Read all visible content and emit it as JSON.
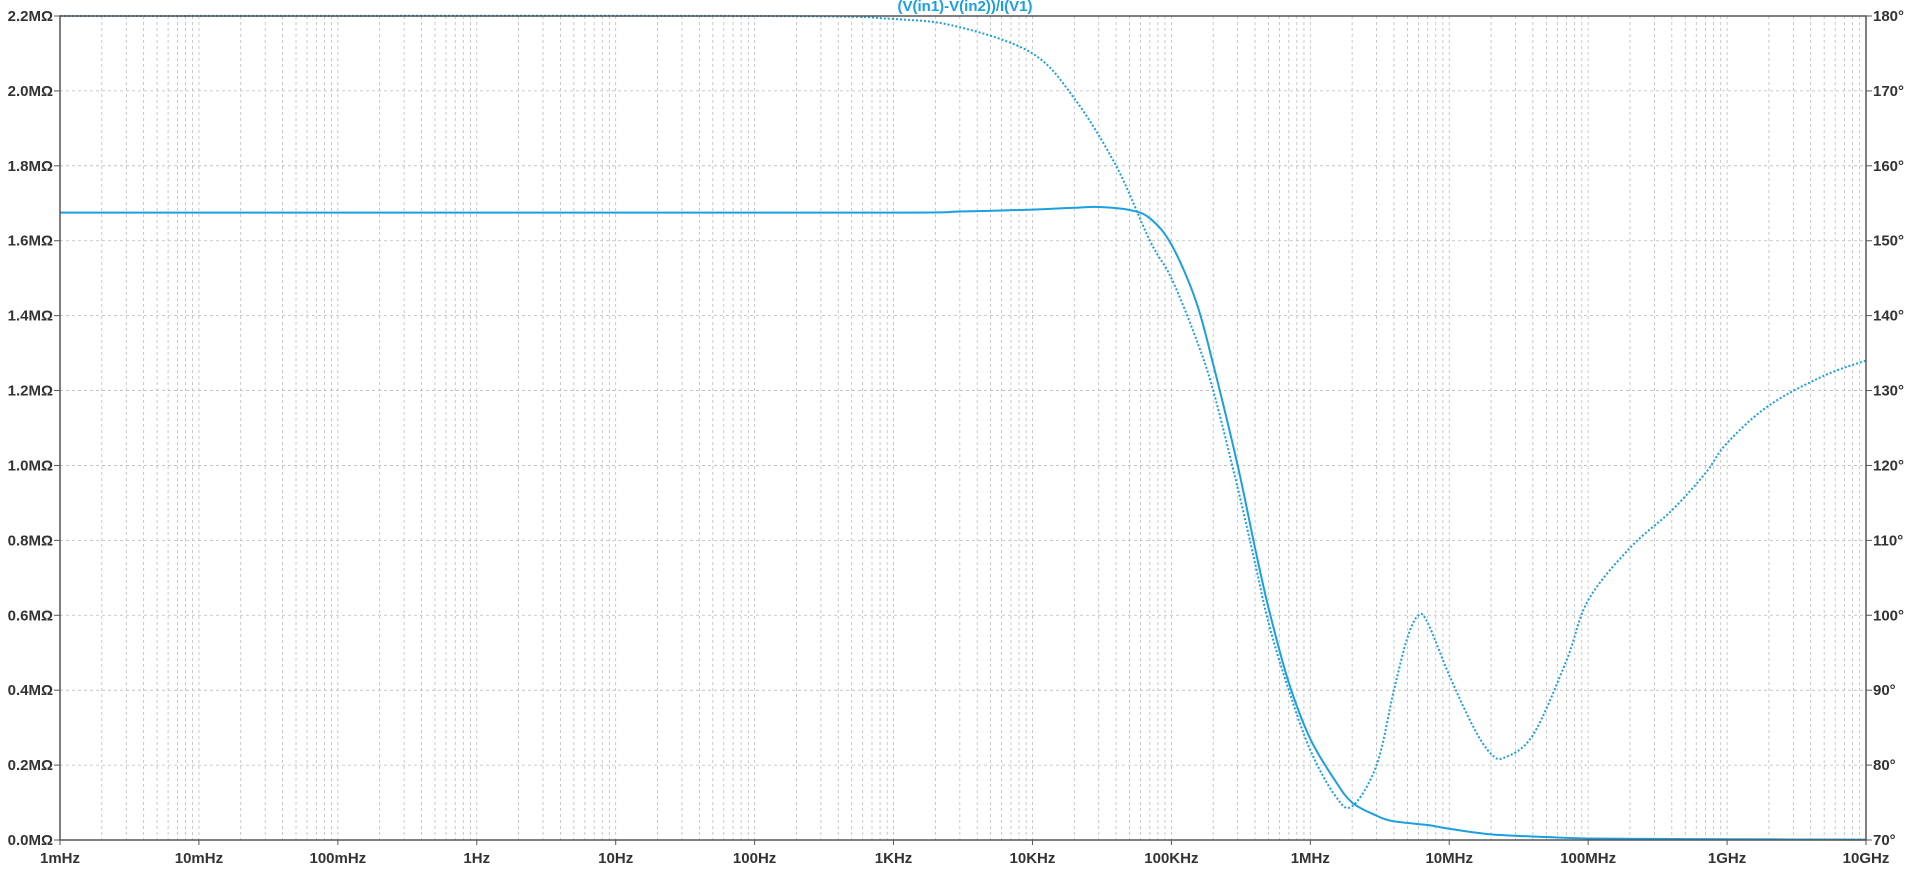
{
  "chart_data": {
    "type": "line",
    "title": "(V(in1)-V(in2))/I(V1)",
    "x_axis": {
      "scale": "log",
      "range": [
        0.001,
        10000000000
      ],
      "ticks": [
        {
          "value": 0.001,
          "label": "1mHz"
        },
        {
          "value": 0.01,
          "label": "10mHz"
        },
        {
          "value": 0.1,
          "label": "100mHz"
        },
        {
          "value": 1,
          "label": "1Hz"
        },
        {
          "value": 10,
          "label": "10Hz"
        },
        {
          "value": 100,
          "label": "100Hz"
        },
        {
          "value": 1000,
          "label": "1KHz"
        },
        {
          "value": 10000,
          "label": "10KHz"
        },
        {
          "value": 100000,
          "label": "100KHz"
        },
        {
          "value": 1000000,
          "label": "1MHz"
        },
        {
          "value": 10000000,
          "label": "10MHz"
        },
        {
          "value": 100000000,
          "label": "100MHz"
        },
        {
          "value": 1000000000,
          "label": "1GHz"
        },
        {
          "value": 10000000000,
          "label": "10GHz"
        }
      ]
    },
    "y_left": {
      "range": [
        0,
        2.2
      ],
      "unit": "MΩ",
      "ticks": [
        {
          "value": 0.0,
          "label": "0.0MΩ"
        },
        {
          "value": 0.2,
          "label": "0.2MΩ"
        },
        {
          "value": 0.4,
          "label": "0.4MΩ"
        },
        {
          "value": 0.6,
          "label": "0.6MΩ"
        },
        {
          "value": 0.8,
          "label": "0.8MΩ"
        },
        {
          "value": 1.0,
          "label": "1.0MΩ"
        },
        {
          "value": 1.2,
          "label": "1.2MΩ"
        },
        {
          "value": 1.4,
          "label": "1.4MΩ"
        },
        {
          "value": 1.6,
          "label": "1.6MΩ"
        },
        {
          "value": 1.8,
          "label": "1.8MΩ"
        },
        {
          "value": 2.0,
          "label": "2.0MΩ"
        },
        {
          "value": 2.2,
          "label": "2.2MΩ"
        }
      ]
    },
    "y_right": {
      "range": [
        70,
        180
      ],
      "unit": "°",
      "ticks": [
        {
          "value": 70,
          "label": "70°"
        },
        {
          "value": 80,
          "label": "80°"
        },
        {
          "value": 90,
          "label": "90°"
        },
        {
          "value": 100,
          "label": "100°"
        },
        {
          "value": 110,
          "label": "110°"
        },
        {
          "value": 120,
          "label": "120°"
        },
        {
          "value": 130,
          "label": "130°"
        },
        {
          "value": 140,
          "label": "140°"
        },
        {
          "value": 150,
          "label": "150°"
        },
        {
          "value": 160,
          "label": "160°"
        },
        {
          "value": 170,
          "label": "170°"
        },
        {
          "value": 180,
          "label": "180°"
        }
      ]
    },
    "grid": true,
    "series": [
      {
        "quantity": "magnitude",
        "axis": "left",
        "style": "solid",
        "color": "#1a9fe0",
        "points": [
          [
            0.001,
            1.675
          ],
          [
            1,
            1.675
          ],
          [
            1000,
            1.675
          ],
          [
            3000,
            1.678
          ],
          [
            10000,
            1.683
          ],
          [
            20000,
            1.688
          ],
          [
            30000,
            1.69
          ],
          [
            50000,
            1.682
          ],
          [
            70000,
            1.66
          ],
          [
            100000,
            1.59
          ],
          [
            150000,
            1.44
          ],
          [
            200000,
            1.27
          ],
          [
            300000,
            1.0
          ],
          [
            400000,
            0.78
          ],
          [
            500000,
            0.62
          ],
          [
            700000,
            0.42
          ],
          [
            1000000,
            0.27
          ],
          [
            1500000,
            0.16
          ],
          [
            2000000,
            0.1
          ],
          [
            3000000,
            0.065
          ],
          [
            4000000,
            0.05
          ],
          [
            7000000,
            0.04
          ],
          [
            10000000,
            0.03
          ],
          [
            20000000,
            0.015
          ],
          [
            50000000,
            0.008
          ],
          [
            100000000,
            0.004
          ],
          [
            300000000,
            0.003
          ],
          [
            1000000000,
            0.002
          ],
          [
            10000000000,
            0.001
          ]
        ]
      },
      {
        "quantity": "phase",
        "axis": "right",
        "style": "dotted",
        "color": "#1a9fe0",
        "points": [
          [
            0.001,
            180
          ],
          [
            100,
            180
          ],
          [
            1000,
            179.6
          ],
          [
            3000,
            178.5
          ],
          [
            10000,
            175
          ],
          [
            20000,
            169
          ],
          [
            40000,
            160
          ],
          [
            70000,
            150
          ],
          [
            100000,
            145
          ],
          [
            150000,
            137
          ],
          [
            200000,
            130
          ],
          [
            300000,
            117
          ],
          [
            400000,
            107
          ],
          [
            500000,
            99
          ],
          [
            700000,
            90
          ],
          [
            1000000,
            82
          ],
          [
            1500000,
            76
          ],
          [
            2000000,
            74.5
          ],
          [
            3000000,
            80
          ],
          [
            4000000,
            90
          ],
          [
            5000000,
            97
          ],
          [
            6000000,
            100
          ],
          [
            7000000,
            99
          ],
          [
            10000000,
            92
          ],
          [
            15000000,
            85
          ],
          [
            20000000,
            81.5
          ],
          [
            25000000,
            81
          ],
          [
            40000000,
            84
          ],
          [
            70000000,
            94
          ],
          [
            100000000,
            102
          ],
          [
            200000000,
            109
          ],
          [
            400000000,
            114
          ],
          [
            700000000,
            119
          ],
          [
            1000000000,
            123
          ],
          [
            2000000000,
            128
          ],
          [
            5000000000,
            132
          ],
          [
            10000000000,
            134
          ]
        ]
      }
    ]
  },
  "colors": {
    "trace": "#1a9fe0",
    "axis_label": "#333333",
    "grid": "#bbbbbb",
    "frame": "#555555"
  }
}
